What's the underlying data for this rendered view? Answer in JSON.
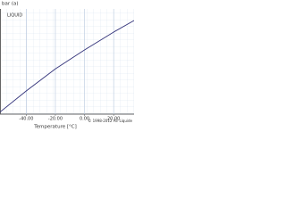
{
  "chart_data": {
    "type": "line",
    "y_label": "bar (a)",
    "annotation": "LIQUID",
    "x_label": "Temperature [°C]",
    "copyright": "© 1998-2012 Air Liquide",
    "x": [
      -58,
      -40,
      -20,
      0,
      20,
      34
    ],
    "series": [
      {
        "name": "LIQUID",
        "color": "#33337a",
        "values": [
          0.2,
          2.2,
          4.3,
          6.1,
          7.8,
          8.9
        ]
      }
    ],
    "xlim": [
      -58,
      34
    ],
    "ylim": [
      0,
      10
    ],
    "xticks": [
      {
        "value": -40,
        "label": "-40.00"
      },
      {
        "value": -20,
        "label": "-20.00"
      },
      {
        "value": 0,
        "label": "0.00"
      },
      {
        "value": 20,
        "label": "20.00"
      }
    ],
    "grid": true
  }
}
